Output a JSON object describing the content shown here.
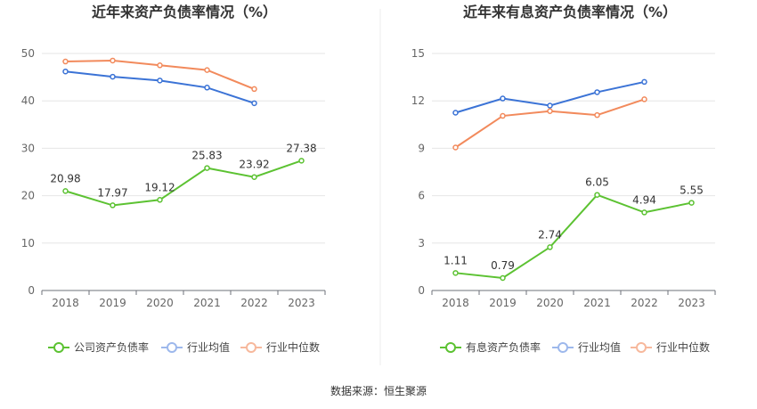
{
  "source_label": "数据来源：恒生聚源",
  "chart_data": [
    {
      "type": "line",
      "title": "近年来资产负债率情况（%）",
      "categories": [
        "2018",
        "2019",
        "2020",
        "2021",
        "2022",
        "2023"
      ],
      "ylim": [
        0,
        50
      ],
      "yticks": [
        "0",
        "10",
        "20",
        "30",
        "40",
        "50"
      ],
      "grid": true,
      "legend": "bottom",
      "series": [
        {
          "name": "公司资产负债率",
          "color": "#5cc232",
          "values": [
            20.98,
            17.97,
            19.12,
            25.83,
            23.92,
            27.38
          ],
          "labels": [
            "20.98",
            "17.97",
            "19.12",
            "25.83",
            "23.92",
            "27.38"
          ]
        },
        {
          "name": "行业均值",
          "color": "#3b73d6",
          "values": [
            46.2,
            45.1,
            44.3,
            42.8,
            39.5,
            null
          ]
        },
        {
          "name": "行业中位数",
          "color": "#f28a5c",
          "values": [
            48.3,
            48.5,
            47.5,
            46.5,
            42.5,
            null
          ]
        }
      ]
    },
    {
      "type": "line",
      "title": "近年来有息资产负债率情况（%）",
      "categories": [
        "2018",
        "2019",
        "2020",
        "2021",
        "2022",
        "2023"
      ],
      "ylim": [
        0,
        15
      ],
      "yticks": [
        "0",
        "3",
        "6",
        "9",
        "12",
        "15"
      ],
      "grid": true,
      "legend": "bottom",
      "series": [
        {
          "name": "有息资产负债率",
          "color": "#5cc232",
          "values": [
            1.11,
            0.79,
            2.74,
            6.05,
            4.94,
            5.55
          ],
          "labels": [
            "1.11",
            "0.79",
            "2.74",
            "6.05",
            "4.94",
            "5.55"
          ]
        },
        {
          "name": "行业均值",
          "color": "#3b73d6",
          "values": [
            11.25,
            12.15,
            11.7,
            12.55,
            13.2,
            null
          ]
        },
        {
          "name": "行业中位数",
          "color": "#f28a5c",
          "values": [
            9.05,
            11.05,
            11.35,
            11.1,
            12.1,
            null
          ]
        }
      ]
    }
  ]
}
